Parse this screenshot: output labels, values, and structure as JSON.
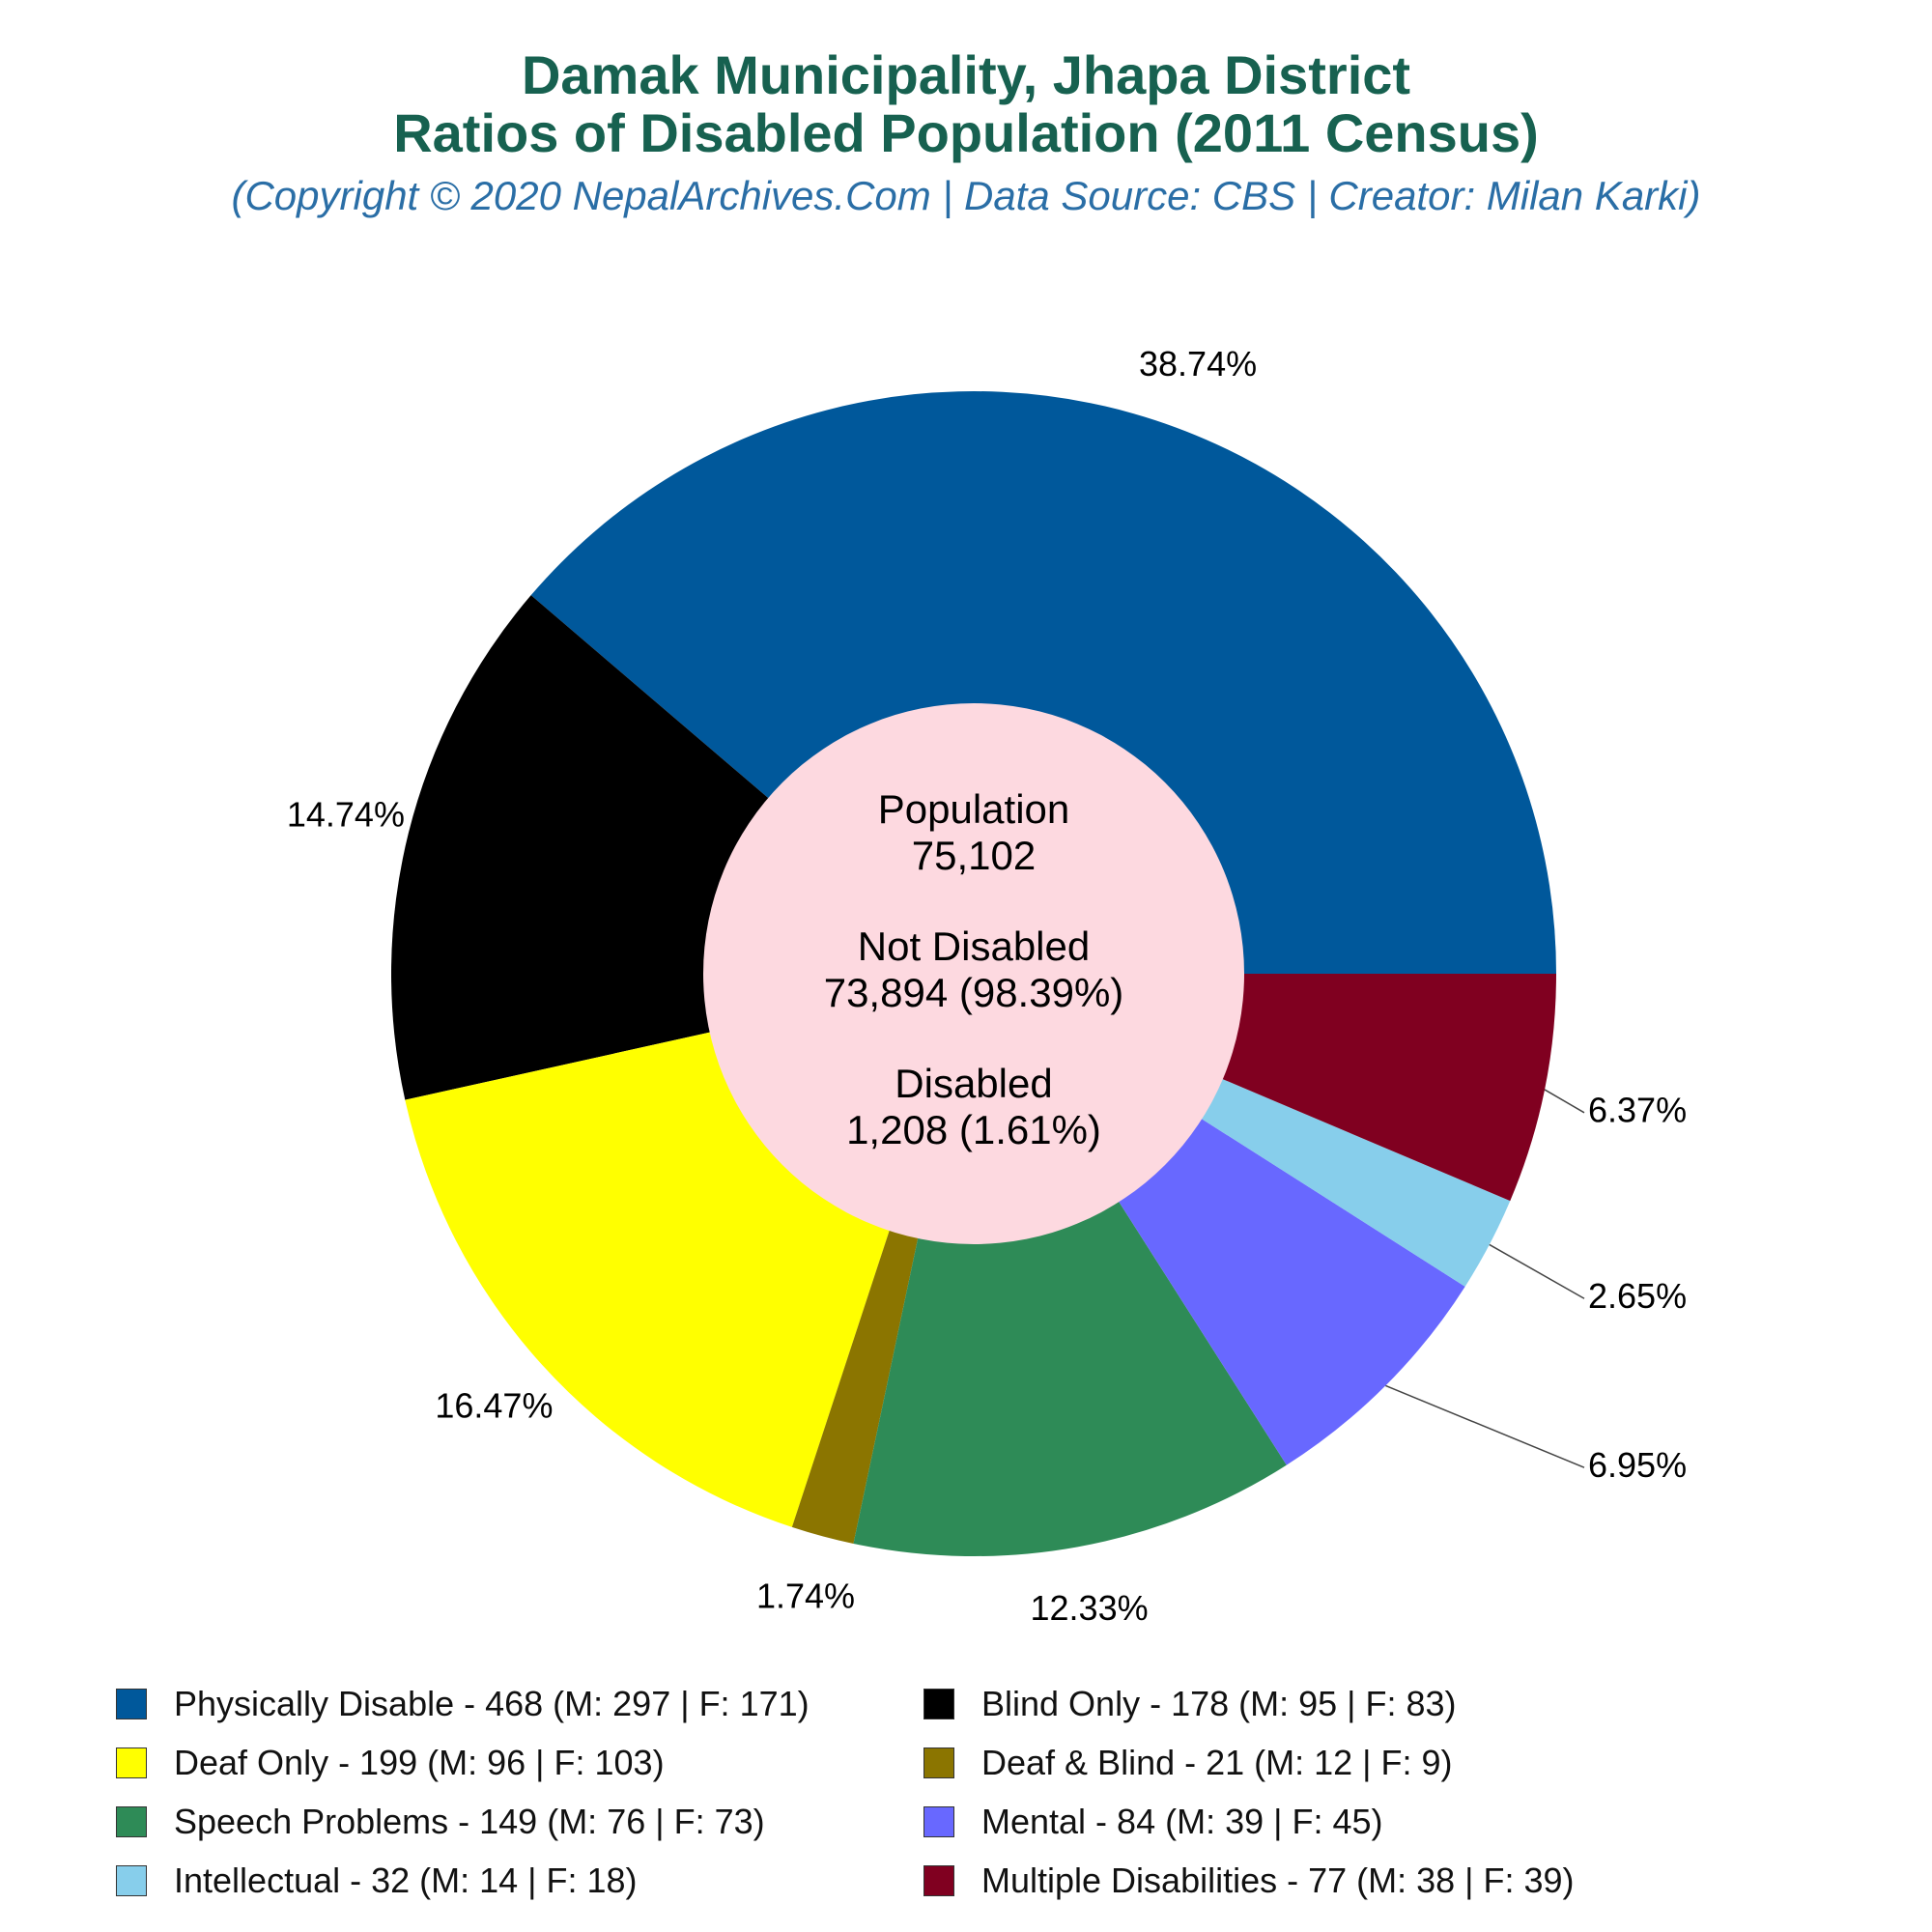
{
  "header": {
    "title_line1": "Damak Municipality, Jhapa District",
    "title_line2": "Ratios of Disabled Population (2011 Census)",
    "subtitle": "(Copyright © 2020 NepalArchives.Com | Data Source: CBS | Creator: Milan Karki)"
  },
  "center": {
    "population_label": "Population",
    "population_value": "75,102",
    "not_disabled_label": "Not Disabled",
    "not_disabled_value": "73,894 (98.39%)",
    "disabled_label": "Disabled",
    "disabled_value": "1,208 (1.61%)",
    "color": "#fdd9e0"
  },
  "chart_data": {
    "type": "pie",
    "title": "Ratios of Disabled Population (2011 Census)",
    "slices": [
      {
        "name": "Physically Disable",
        "value": 468,
        "percent_label": "38.74%",
        "color": "#00589b",
        "legend": "Physically Disable - 468 (M: 297 | F: 171)"
      },
      {
        "name": "Blind Only",
        "value": 178,
        "percent_label": "14.74%",
        "color": "#000000",
        "legend": "Blind Only - 178 (M: 95 | F: 83)"
      },
      {
        "name": "Deaf Only",
        "value": 199,
        "percent_label": "16.47%",
        "color": "#ffff00",
        "legend": "Deaf Only - 199 (M: 96 | F: 103)"
      },
      {
        "name": "Deaf & Blind",
        "value": 21,
        "percent_label": "1.74%",
        "color": "#8b7500",
        "legend": "Deaf & Blind - 21 (M: 12 | F: 9)"
      },
      {
        "name": "Speech Problems",
        "value": 149,
        "percent_label": "12.33%",
        "color": "#2e8b57",
        "legend": "Speech Problems - 149 (M: 76 | F: 73)"
      },
      {
        "name": "Mental",
        "value": 84,
        "percent_label": "6.95%",
        "color": "#6868ff",
        "legend": "Mental - 84 (M: 39 | F: 45)"
      },
      {
        "name": "Intellectual",
        "value": 32,
        "percent_label": "2.65%",
        "color": "#87ceeb",
        "legend": "Intellectual - 32 (M: 14 | F: 18)"
      },
      {
        "name": "Multiple Disabilities",
        "value": 77,
        "percent_label": "6.37%",
        "color": "#800020",
        "legend": "Multiple Disabilities - 77 (M: 38 | F: 39)"
      }
    ],
    "legend_position": "bottom"
  }
}
